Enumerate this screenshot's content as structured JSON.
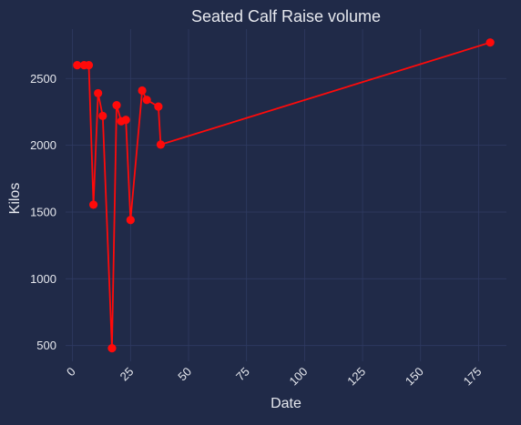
{
  "chart_data": {
    "type": "line",
    "title": "Seated Calf Raise volume",
    "xlabel": "Date",
    "ylabel": "Kilos",
    "x_ticks": [
      0,
      25,
      50,
      75,
      100,
      125,
      150,
      175
    ],
    "y_ticks": [
      500,
      1000,
      1500,
      2000,
      2500
    ],
    "xlim": [
      -3,
      187
    ],
    "ylim": [
      382,
      2870
    ],
    "grid": true,
    "colors": {
      "background": "#202a48",
      "grid": "#2f3b62",
      "line": "#ff0a0a",
      "text": "#e6e8ee"
    },
    "series": [
      {
        "x": [
          2,
          5,
          7,
          9,
          11,
          13,
          17,
          19,
          21,
          23,
          25,
          30,
          32,
          37,
          38,
          180
        ],
        "y": [
          2600,
          2600,
          2600,
          1555,
          2390,
          2220,
          480,
          2300,
          2180,
          2190,
          1440,
          2410,
          2340,
          2290,
          2005,
          2770
        ]
      }
    ]
  }
}
